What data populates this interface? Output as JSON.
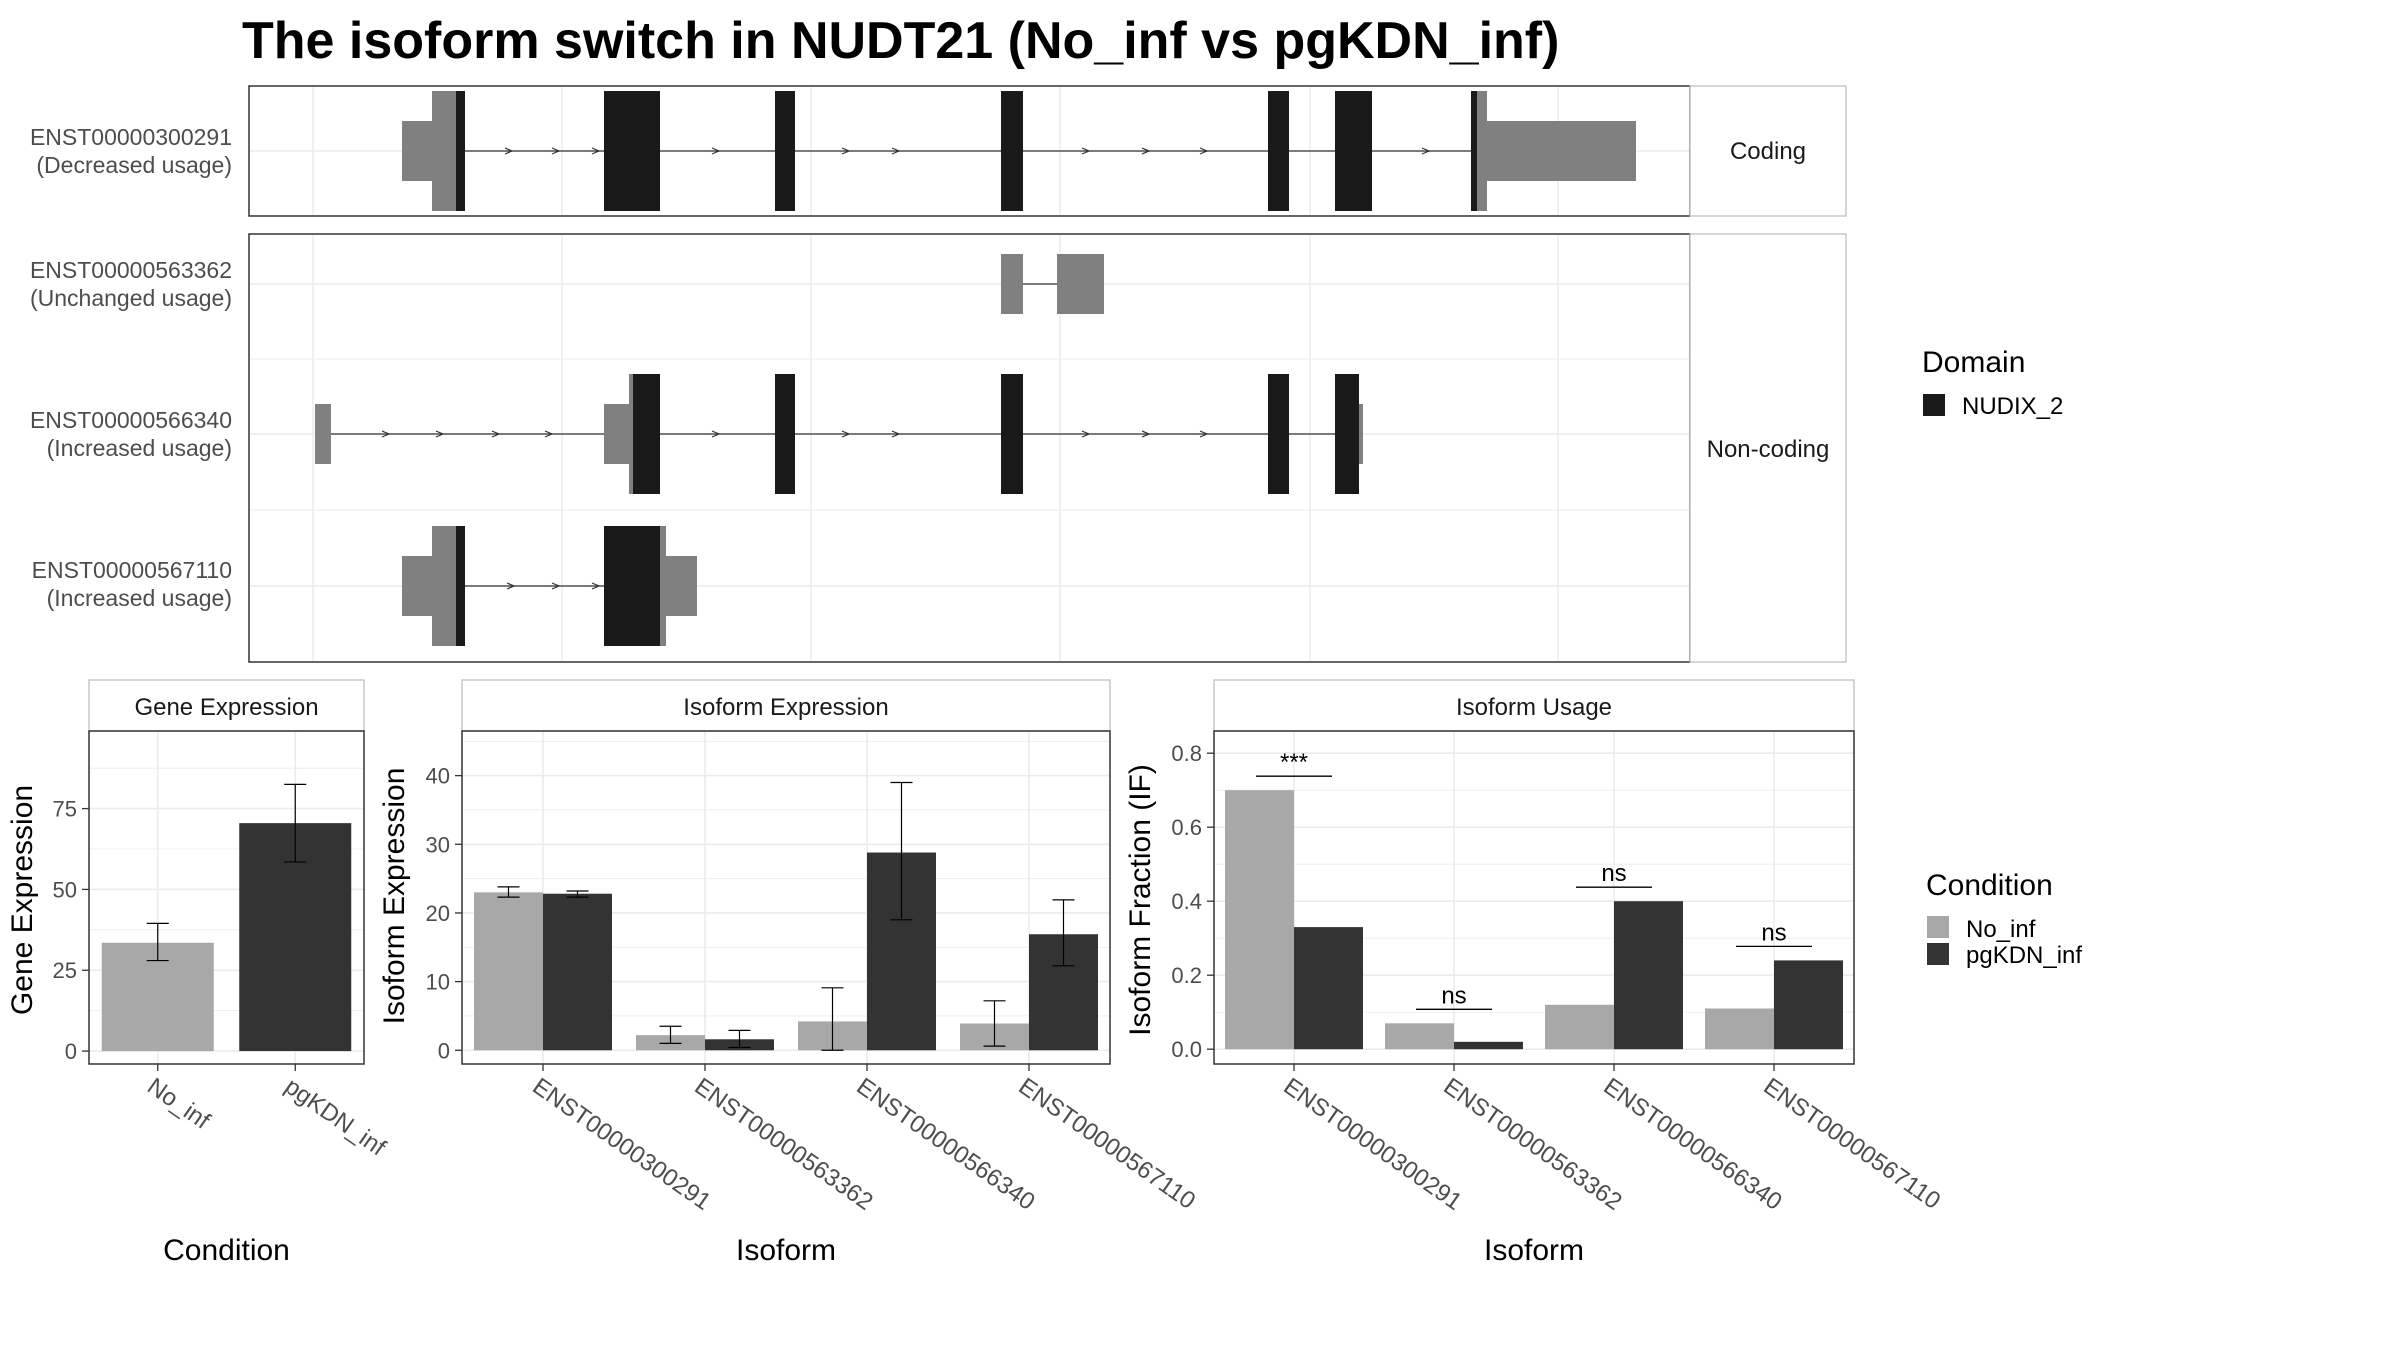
{
  "title": "The isoform switch in NUDT21 (No_inf vs pgKDN_inf)",
  "colors": {
    "no_inf": "#a8a8a8",
    "pgkdn_inf": "#333333",
    "domain": "#1a1a1a",
    "utr": "#808080",
    "grid": "#ebebeb",
    "strip": "#ffffff"
  },
  "structure": {
    "facets": [
      "Coding",
      "Non-coding"
    ],
    "transcripts": [
      {
        "id": "ENST00000300291",
        "label": "(Decreased usage)",
        "facet": "Coding"
      },
      {
        "id": "ENST00000563362",
        "label": "(Unchanged usage)",
        "facet": "Non-coding"
      },
      {
        "id": "ENST00000566340",
        "label": "(Increased usage)",
        "facet": "Non-coding"
      },
      {
        "id": "ENST00000567110",
        "label": "(Increased usage)",
        "facet": "Non-coding"
      }
    ],
    "legend": {
      "title": "Domain",
      "entries": [
        {
          "name": "NUDIX_2",
          "color": "#1a1a1a"
        }
      ]
    }
  },
  "chart_data": [
    {
      "type": "bar",
      "strip": "Gene Expression",
      "xlabel": "Condition",
      "ylabel": "Gene Expression",
      "categories": [
        "No_inf",
        "pgKDN_inf"
      ],
      "values": [
        33.5,
        70.5
      ],
      "errors": [
        [
          28,
          39.5
        ],
        [
          58.5,
          82.5
        ]
      ],
      "colors": [
        "#a8a8a8",
        "#333333"
      ],
      "yticks": [
        0,
        25,
        50,
        75
      ],
      "ylim": [
        -4,
        99
      ]
    },
    {
      "type": "bar",
      "strip": "Isoform Expression",
      "xlabel": "Isoform",
      "ylabel": "Isoform Expression",
      "categories": [
        "ENST00000300291",
        "ENST00000563362",
        "ENST00000566340",
        "ENST00000567110"
      ],
      "series": [
        {
          "name": "No_inf",
          "values": [
            23,
            2.2,
            4.2,
            3.9
          ],
          "errors": [
            [
              22.3,
              23.8
            ],
            [
              1.0,
              3.5
            ],
            [
              0,
              9.1
            ],
            [
              0.6,
              7.2
            ]
          ]
        },
        {
          "name": "pgKDN_inf",
          "values": [
            22.8,
            1.6,
            28.8,
            16.9
          ],
          "errors": [
            [
              22.3,
              23.2
            ],
            [
              0.4,
              2.9
            ],
            [
              19,
              39
            ],
            [
              12.3,
              21.9
            ]
          ]
        }
      ],
      "yticks": [
        0,
        10,
        20,
        30,
        40
      ],
      "ylim": [
        -2,
        46.5
      ]
    },
    {
      "type": "bar",
      "strip": "Isoform Usage",
      "xlabel": "Isoform",
      "ylabel": "Isoform Fraction (IF)",
      "categories": [
        "ENST00000300291",
        "ENST00000563362",
        "ENST00000566340",
        "ENST00000567110"
      ],
      "series": [
        {
          "name": "No_inf",
          "values": [
            0.7,
            0.07,
            0.12,
            0.11
          ]
        },
        {
          "name": "pgKDN_inf",
          "values": [
            0.33,
            0.02,
            0.4,
            0.24
          ]
        }
      ],
      "significance": [
        "***",
        "ns",
        "ns",
        "ns"
      ],
      "yticks": [
        0.0,
        0.2,
        0.4,
        0.6,
        0.8
      ],
      "ytick_labels": [
        "0.0",
        "0.2",
        "0.4",
        "0.6",
        "0.8"
      ],
      "ylim": [
        -0.04,
        0.86
      ],
      "legend": {
        "title": "Condition",
        "entries": [
          "No_inf",
          "pgKDN_inf"
        ]
      }
    }
  ]
}
